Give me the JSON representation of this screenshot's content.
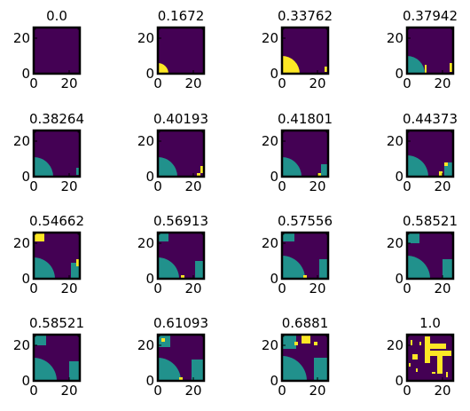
{
  "figure": {
    "rows": 4,
    "cols": 4
  },
  "colors": {
    "background": "#440154",
    "frame": "#000000",
    "state_1": "#21918c",
    "state_2": "#fde725"
  },
  "chart_data": {
    "type": "heatmap",
    "grid_size": 26,
    "colormap": "viridis",
    "x_ticks": [
      0,
      20
    ],
    "y_ticks": [
      0,
      20
    ],
    "xlim": [
      0,
      25
    ],
    "ylim": [
      0,
      25
    ],
    "panels": [
      {
        "title": "0.0",
        "regions": []
      },
      {
        "title": "0.1672",
        "regions": [
          {
            "state": "state_2",
            "shape": "quarter",
            "cx": 0,
            "cy": 0,
            "r": 6
          }
        ]
      },
      {
        "title": "0.33762",
        "regions": [
          {
            "state": "state_2",
            "shape": "quarter",
            "cx": 0,
            "cy": 0,
            "r": 10
          },
          {
            "state": "state_2",
            "shape": "rect",
            "x": [
              24,
              25
            ],
            "y": [
              1,
              3
            ]
          }
        ]
      },
      {
        "title": "0.37942",
        "regions": [
          {
            "state": "state_1",
            "shape": "quarter",
            "cx": 0,
            "cy": 0,
            "r": 10
          },
          {
            "state": "state_2",
            "shape": "rect",
            "x": [
              10,
              10
            ],
            "y": [
              0,
              4
            ]
          },
          {
            "state": "state_2",
            "shape": "rect",
            "x": [
              24,
              25
            ],
            "y": [
              1,
              5
            ]
          }
        ]
      },
      {
        "title": "0.38264",
        "regions": [
          {
            "state": "state_1",
            "shape": "quarter",
            "cx": 0,
            "cy": 0,
            "r": 11
          },
          {
            "state": "state_1",
            "shape": "rect",
            "x": [
              24,
              25
            ],
            "y": [
              1,
              4
            ]
          }
        ]
      },
      {
        "title": "0.40193",
        "regions": [
          {
            "state": "state_1",
            "shape": "quarter",
            "cx": 0,
            "cy": 0,
            "r": 11
          },
          {
            "state": "state_2",
            "shape": "rect",
            "x": [
              22,
              23
            ],
            "y": [
              0,
              1
            ]
          },
          {
            "state": "state_2",
            "shape": "rect",
            "x": [
              24,
              25
            ],
            "y": [
              2,
              5
            ]
          }
        ]
      },
      {
        "title": "0.41801",
        "regions": [
          {
            "state": "state_1",
            "shape": "quarter",
            "cx": 0,
            "cy": 0,
            "r": 11
          },
          {
            "state": "state_1",
            "shape": "rect",
            "x": [
              22,
              25
            ],
            "y": [
              0,
              6
            ]
          },
          {
            "state": "state_2",
            "shape": "rect",
            "x": [
              20,
              21
            ],
            "y": [
              0,
              1
            ]
          }
        ]
      },
      {
        "title": "0.44373",
        "regions": [
          {
            "state": "state_1",
            "shape": "quarter",
            "cx": 0,
            "cy": 0,
            "r": 12
          },
          {
            "state": "state_1",
            "shape": "rect",
            "x": [
              21,
              25
            ],
            "y": [
              0,
              7
            ]
          },
          {
            "state": "state_2",
            "shape": "rect",
            "x": [
              18,
              19
            ],
            "y": [
              0,
              2
            ]
          },
          {
            "state": "state_2",
            "shape": "rect",
            "x": [
              21,
              22
            ],
            "y": [
              6,
              7
            ]
          }
        ]
      },
      {
        "title": "0.54662",
        "regions": [
          {
            "state": "state_1",
            "shape": "quarter",
            "cx": 0,
            "cy": 0,
            "r": 12
          },
          {
            "state": "state_1",
            "shape": "rect",
            "x": [
              21,
              25
            ],
            "y": [
              0,
              8
            ]
          },
          {
            "state": "state_2",
            "shape": "rect",
            "x": [
              0,
              5
            ],
            "y": [
              21,
              25
            ]
          },
          {
            "state": "state_2",
            "shape": "rect",
            "x": [
              24,
              25
            ],
            "y": [
              7,
              10
            ]
          }
        ]
      },
      {
        "title": "0.56913",
        "regions": [
          {
            "state": "state_1",
            "shape": "quarter",
            "cx": 0,
            "cy": 0,
            "r": 12
          },
          {
            "state": "state_1",
            "shape": "rect",
            "x": [
              21,
              25
            ],
            "y": [
              0,
              9
            ]
          },
          {
            "state": "state_1",
            "shape": "rect",
            "x": [
              0,
              5
            ],
            "y": [
              21,
              25
            ]
          },
          {
            "state": "state_2",
            "shape": "rect",
            "x": [
              13,
              14
            ],
            "y": [
              0,
              1
            ]
          }
        ]
      },
      {
        "title": "0.57556",
        "regions": [
          {
            "state": "state_1",
            "shape": "quarter",
            "cx": 0,
            "cy": 0,
            "r": 13
          },
          {
            "state": "state_1",
            "shape": "rect",
            "x": [
              21,
              25
            ],
            "y": [
              0,
              10
            ]
          },
          {
            "state": "state_1",
            "shape": "rect",
            "x": [
              0,
              6
            ],
            "y": [
              21,
              25
            ]
          },
          {
            "state": "state_2",
            "shape": "rect",
            "x": [
              12,
              13
            ],
            "y": [
              0,
              1
            ]
          }
        ]
      },
      {
        "title": "0.58521",
        "regions": [
          {
            "state": "state_1",
            "shape": "quarter",
            "cx": 0,
            "cy": 0,
            "r": 13
          },
          {
            "state": "state_1",
            "shape": "rect",
            "x": [
              20,
              25
            ],
            "y": [
              0,
              10
            ]
          },
          {
            "state": "state_1",
            "shape": "rect",
            "x": [
              0,
              6
            ],
            "y": [
              20,
              25
            ]
          }
        ]
      },
      {
        "title": "0.58521",
        "regions": [
          {
            "state": "state_1",
            "shape": "quarter",
            "cx": 0,
            "cy": 0,
            "r": 13
          },
          {
            "state": "state_1",
            "shape": "rect",
            "x": [
              20,
              25
            ],
            "y": [
              0,
              10
            ]
          },
          {
            "state": "state_1",
            "shape": "rect",
            "x": [
              0,
              6
            ],
            "y": [
              20,
              25
            ]
          }
        ]
      },
      {
        "title": "0.61093",
        "regions": [
          {
            "state": "state_1",
            "shape": "quarter",
            "cx": 0,
            "cy": 0,
            "r": 13
          },
          {
            "state": "state_1",
            "shape": "rect",
            "x": [
              19,
              25
            ],
            "y": [
              0,
              11
            ]
          },
          {
            "state": "state_1",
            "shape": "rect",
            "x": [
              0,
              6
            ],
            "y": [
              19,
              25
            ]
          },
          {
            "state": "state_2",
            "shape": "rect",
            "x": [
              12,
              13
            ],
            "y": [
              0,
              1
            ]
          },
          {
            "state": "state_2",
            "shape": "rect",
            "x": [
              2,
              3
            ],
            "y": [
              22,
              23
            ]
          }
        ]
      },
      {
        "title": "0.6881",
        "regions": [
          {
            "state": "state_1",
            "shape": "quarter",
            "cx": 0,
            "cy": 0,
            "r": 14
          },
          {
            "state": "state_1",
            "shape": "rect",
            "x": [
              18,
              25
            ],
            "y": [
              0,
              12
            ]
          },
          {
            "state": "state_1",
            "shape": "rect",
            "x": [
              0,
              7
            ],
            "y": [
              18,
              25
            ]
          },
          {
            "state": "state_2",
            "shape": "rect",
            "x": [
              11,
              15
            ],
            "y": [
              21,
              25
            ]
          },
          {
            "state": "state_2",
            "shape": "rect",
            "x": [
              7,
              8
            ],
            "y": [
              20,
              21
            ]
          },
          {
            "state": "state_2",
            "shape": "rect",
            "x": [
              18,
              19
            ],
            "y": [
              20,
              21
            ]
          }
        ]
      },
      {
        "title": "1.0",
        "regions": [
          {
            "state": "state_2",
            "shape": "rect",
            "x": [
              10,
              12
            ],
            "y": [
              10,
              24
            ]
          },
          {
            "state": "state_2",
            "shape": "rect",
            "x": [
              12,
              24
            ],
            "y": [
              14,
              16
            ]
          },
          {
            "state": "state_2",
            "shape": "rect",
            "x": [
              17,
              19
            ],
            "y": [
              4,
              14
            ]
          },
          {
            "state": "state_2",
            "shape": "rect",
            "x": [
              13,
              21
            ],
            "y": [
              18,
              20
            ]
          },
          {
            "state": "state_2",
            "shape": "rect",
            "x": [
              3,
              5
            ],
            "y": [
              12,
              14
            ]
          },
          {
            "state": "state_2",
            "shape": "rect",
            "x": [
              2,
              2
            ],
            "y": [
              20,
              22
            ]
          },
          {
            "state": "state_2",
            "shape": "rect",
            "x": [
              5,
              5
            ],
            "y": [
              5,
              6
            ]
          },
          {
            "state": "state_2",
            "shape": "rect",
            "x": [
              7,
              7
            ],
            "y": [
              20,
              21
            ]
          },
          {
            "state": "state_2",
            "shape": "rect",
            "x": [
              22,
              22
            ],
            "y": [
              2,
              4
            ]
          },
          {
            "state": "state_2",
            "shape": "rect",
            "x": [
              1,
              1
            ],
            "y": [
              8,
              9
            ]
          },
          {
            "state": "state_2",
            "shape": "rect",
            "x": [
              14,
              15
            ],
            "y": [
              4,
              4
            ]
          }
        ]
      }
    ]
  }
}
